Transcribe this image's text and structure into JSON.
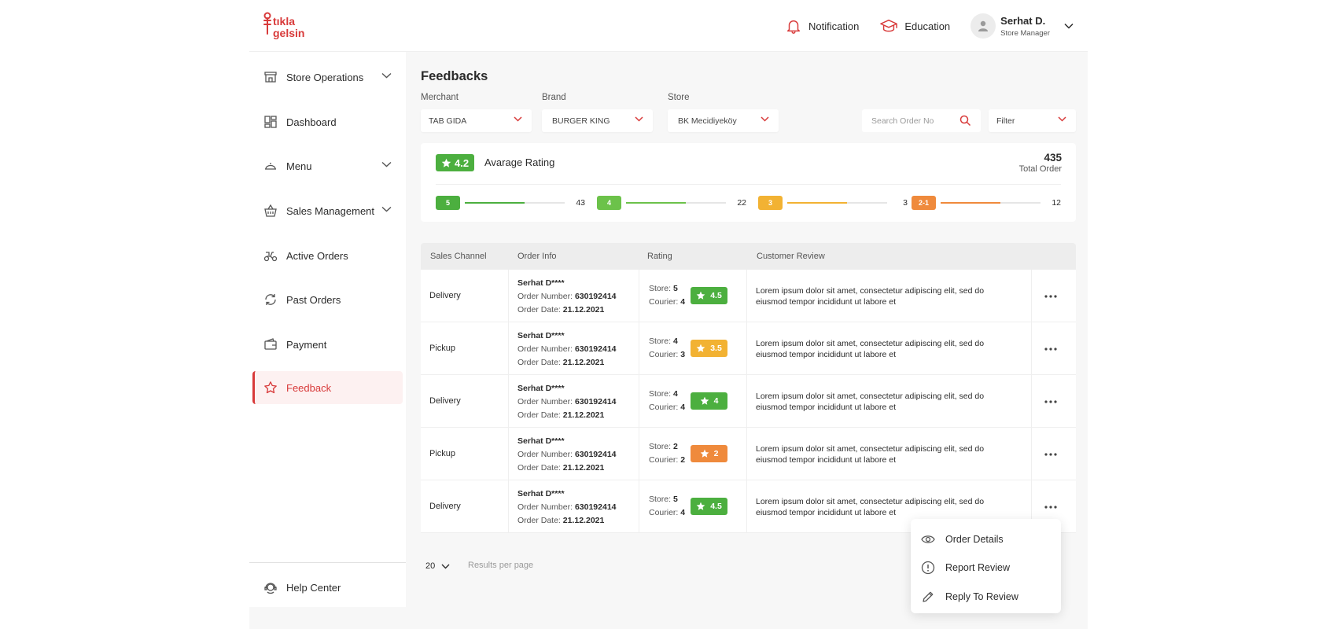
{
  "header": {
    "logo_text_top": "tıkla",
    "logo_text_bottom": "gelsin",
    "notification_label": "Notification",
    "education_label": "Education",
    "user_name": "Serhat D.",
    "user_role": "Store Manager"
  },
  "sidebar": {
    "items": [
      {
        "label": "Store Operations",
        "icon": "store-icon"
      },
      {
        "label": "Dashboard",
        "icon": "dashboard-icon"
      },
      {
        "label": "Menu",
        "icon": "menu-cloche-icon"
      },
      {
        "label": "Sales Management",
        "icon": "basket-icon"
      },
      {
        "label": "Active Orders",
        "icon": "scooter-icon"
      },
      {
        "label": "Past Orders",
        "icon": "refresh-icon"
      },
      {
        "label": "Payment",
        "icon": "wallet-icon"
      },
      {
        "label": "Feedback",
        "icon": "star-icon"
      }
    ],
    "help_label": "Help Center"
  },
  "page": {
    "title": "Feedbacks",
    "filters": {
      "merchant_label": "Merchant",
      "merchant_value": "TAB GIDA",
      "brand_label": "Brand",
      "brand_value": "BURGER KING",
      "store_label": "Store",
      "store_value": "BK Mecidiyeköy",
      "search_placeholder": "Search Order No",
      "filter_label": "Filter"
    },
    "rating_summary": {
      "average": "4.2",
      "average_label": "Avarage Rating",
      "total": "435",
      "total_label": "Total Order",
      "distribution": [
        {
          "label": "5",
          "count": "43",
          "fill": 0.6,
          "color": "#4caf3f"
        },
        {
          "label": "4",
          "count": "22",
          "fill": 0.6,
          "color": "#6cc24a"
        },
        {
          "label": "3",
          "count": "3",
          "fill": 0.6,
          "color": "#f2b233"
        },
        {
          "label": "2-1",
          "count": "12",
          "fill": 0.6,
          "color": "#ef8a3c"
        }
      ]
    },
    "table": {
      "headers": [
        "Sales Channel",
        "Order Info",
        "Rating",
        "Customer Review"
      ],
      "order_number_label": "Order Number:",
      "order_date_label": "Order Date:",
      "store_label": "Store:",
      "courier_label": "Courier:",
      "rows": [
        {
          "channel": "Delivery",
          "name": "Serhat D****",
          "order_number": "630192414",
          "order_date": "21.12.2021",
          "store": "5",
          "courier": "4",
          "score": "4.5",
          "color": "#4caf3f",
          "review": "Lorem ipsum dolor sit amet, consectetur adipiscing elit, sed do eiusmod tempor incididunt ut labore et"
        },
        {
          "channel": "Pickup",
          "name": "Serhat D****",
          "order_number": "630192414",
          "order_date": "21.12.2021",
          "store": "4",
          "courier": "3",
          "score": "3.5",
          "color": "#f2b233",
          "review": "Lorem ipsum dolor sit amet, consectetur adipiscing elit, sed do eiusmod tempor incididunt ut labore et"
        },
        {
          "channel": "Delivery",
          "name": "Serhat D****",
          "order_number": "630192414",
          "order_date": "21.12.2021",
          "store": "4",
          "courier": "4",
          "score": "4",
          "color": "#4caf3f",
          "review": "Lorem ipsum dolor sit amet, consectetur adipiscing elit, sed do eiusmod tempor incididunt ut labore et"
        },
        {
          "channel": "Pickup",
          "name": "Serhat D****",
          "order_number": "630192414",
          "order_date": "21.12.2021",
          "store": "2",
          "courier": "2",
          "score": "2",
          "color": "#ef8a3c",
          "review": "Lorem ipsum dolor sit amet, consectetur adipiscing elit, sed do eiusmod tempor incididunt ut labore et"
        },
        {
          "channel": "Delivery",
          "name": "Serhat D****",
          "order_number": "630192414",
          "order_date": "21.12.2021",
          "store": "5",
          "courier": "4",
          "score": "4.5",
          "color": "#4caf3f",
          "review": "Lorem ipsum dolor sit amet, consectetur adipiscing elit, sed do eiusmod tempor incididunt ut labore et"
        }
      ]
    },
    "pagination": {
      "per_page": "20",
      "per_page_label": "Results per page"
    },
    "context_menu": {
      "items": [
        {
          "label": "Order Details",
          "icon": "eye-icon"
        },
        {
          "label": "Report Review",
          "icon": "alert-circle-icon"
        },
        {
          "label": "Reply To Review",
          "icon": "pencil-icon"
        }
      ]
    }
  },
  "colors": {
    "brand": "#d83a3a",
    "green": "#4caf3f",
    "yellow": "#f2b233",
    "orange": "#ef8a3c"
  }
}
